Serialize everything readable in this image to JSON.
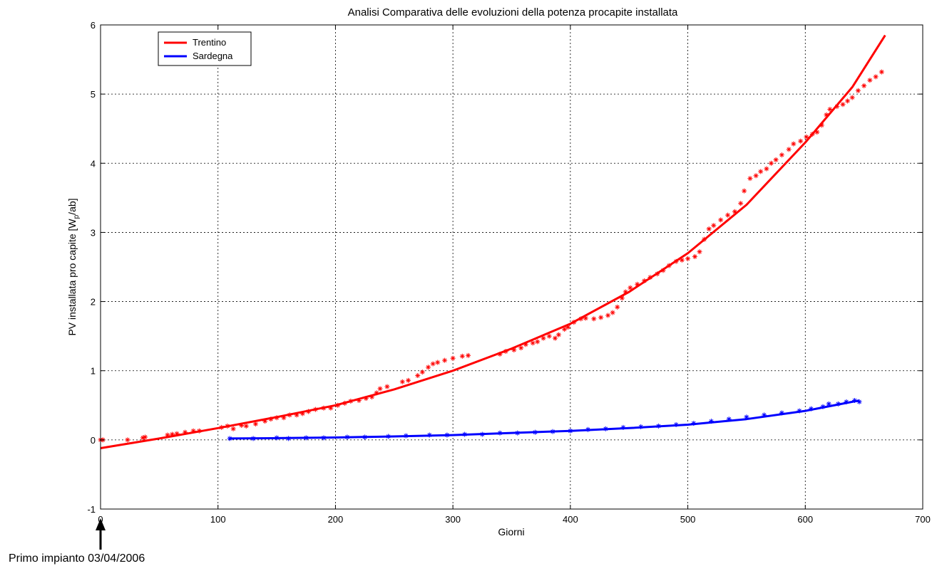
{
  "chart_data": {
    "type": "scatter",
    "title": "Analisi Comparativa delle evoluzioni della potenza procapite installata",
    "xlabel": "Giorni",
    "ylabel": "PV installata pro capite [W",
    "ylabel_sub": "p",
    "ylabel_tail": "/ab]",
    "xlim": [
      0,
      700
    ],
    "ylim": [
      -1,
      6
    ],
    "x_ticks": [
      "0",
      "100",
      "200",
      "300",
      "400",
      "500",
      "600",
      "700"
    ],
    "y_ticks": [
      "-1",
      "0",
      "1",
      "2",
      "3",
      "4",
      "5",
      "6"
    ],
    "grid": true,
    "legend_position": "top-left",
    "annotation": "Primo impianto 03/04/2006",
    "series": [
      {
        "name": "Trentino",
        "color": "#ff0000",
        "fit_x": [
          0,
          50,
          100,
          150,
          200,
          250,
          300,
          350,
          400,
          450,
          500,
          550,
          600,
          640,
          668
        ],
        "fit_y": [
          -0.12,
          0.02,
          0.17,
          0.33,
          0.5,
          0.73,
          1.0,
          1.32,
          1.68,
          2.14,
          2.7,
          3.4,
          4.3,
          5.1,
          5.85
        ],
        "points_x": [
          0,
          2,
          23,
          36,
          38,
          57,
          61,
          65,
          72,
          79,
          84,
          103,
          108,
          113,
          120,
          124,
          132,
          140,
          145,
          150,
          156,
          161,
          167,
          172,
          177,
          183,
          190,
          196,
          202,
          208,
          213,
          220,
          226,
          231,
          235,
          238,
          244,
          257,
          262,
          270,
          274,
          279,
          283,
          287,
          293,
          300,
          308,
          313,
          340,
          345,
          352,
          358,
          362,
          368,
          372,
          377,
          382,
          387,
          390,
          395,
          398,
          403,
          409,
          413,
          420,
          426,
          432,
          436,
          440,
          444,
          447,
          451,
          457,
          463,
          468,
          474,
          479,
          484,
          490,
          495,
          500,
          506,
          510,
          514,
          518,
          522,
          528,
          534,
          540,
          545,
          548,
          553,
          558,
          562,
          567,
          571,
          575,
          580,
          586,
          590,
          596,
          601,
          606,
          610,
          614,
          618,
          621,
          627,
          632,
          636,
          640,
          645,
          650,
          655,
          660,
          665
        ],
        "points_y": [
          0.0,
          0.0,
          0.0,
          0.03,
          0.04,
          0.07,
          0.08,
          0.09,
          0.11,
          0.13,
          0.13,
          0.18,
          0.2,
          0.16,
          0.21,
          0.2,
          0.23,
          0.27,
          0.3,
          0.32,
          0.32,
          0.36,
          0.36,
          0.38,
          0.41,
          0.44,
          0.46,
          0.46,
          0.5,
          0.53,
          0.56,
          0.57,
          0.6,
          0.62,
          0.68,
          0.74,
          0.77,
          0.84,
          0.86,
          0.93,
          0.98,
          1.05,
          1.1,
          1.12,
          1.15,
          1.18,
          1.21,
          1.22,
          1.24,
          1.28,
          1.3,
          1.33,
          1.38,
          1.4,
          1.42,
          1.47,
          1.5,
          1.47,
          1.52,
          1.6,
          1.63,
          1.7,
          1.75,
          1.76,
          1.75,
          1.77,
          1.8,
          1.84,
          1.92,
          2.05,
          2.14,
          2.2,
          2.25,
          2.3,
          2.35,
          2.4,
          2.45,
          2.52,
          2.58,
          2.6,
          2.62,
          2.65,
          2.72,
          2.9,
          3.05,
          3.1,
          3.18,
          3.25,
          3.3,
          3.42,
          3.6,
          3.78,
          3.82,
          3.88,
          3.92,
          4.0,
          4.05,
          4.12,
          4.2,
          4.28,
          4.32,
          4.38,
          4.42,
          4.45,
          4.55,
          4.7,
          4.78,
          4.82,
          4.85,
          4.9,
          4.95,
          5.05,
          5.12,
          5.2,
          5.25,
          5.32
        ]
      },
      {
        "name": "Sardegna",
        "color": "#0000ff",
        "fit_x": [
          110,
          150,
          200,
          250,
          300,
          350,
          400,
          450,
          500,
          550,
          600,
          640,
          646
        ],
        "fit_y": [
          0.02,
          0.025,
          0.035,
          0.05,
          0.07,
          0.1,
          0.13,
          0.17,
          0.22,
          0.3,
          0.42,
          0.55,
          0.57
        ],
        "points_x": [
          110,
          130,
          150,
          160,
          175,
          190,
          210,
          225,
          245,
          260,
          280,
          295,
          310,
          325,
          340,
          355,
          370,
          385,
          400,
          415,
          430,
          445,
          460,
          475,
          490,
          505,
          520,
          535,
          550,
          565,
          580,
          595,
          605,
          615,
          620,
          628,
          635,
          642,
          646
        ],
        "points_y": [
          0.02,
          0.02,
          0.03,
          0.02,
          0.03,
          0.03,
          0.04,
          0.04,
          0.05,
          0.06,
          0.07,
          0.07,
          0.08,
          0.08,
          0.1,
          0.1,
          0.11,
          0.12,
          0.13,
          0.15,
          0.16,
          0.18,
          0.19,
          0.2,
          0.22,
          0.24,
          0.27,
          0.3,
          0.33,
          0.36,
          0.39,
          0.42,
          0.45,
          0.48,
          0.52,
          0.52,
          0.55,
          0.57,
          0.55
        ]
      }
    ]
  }
}
